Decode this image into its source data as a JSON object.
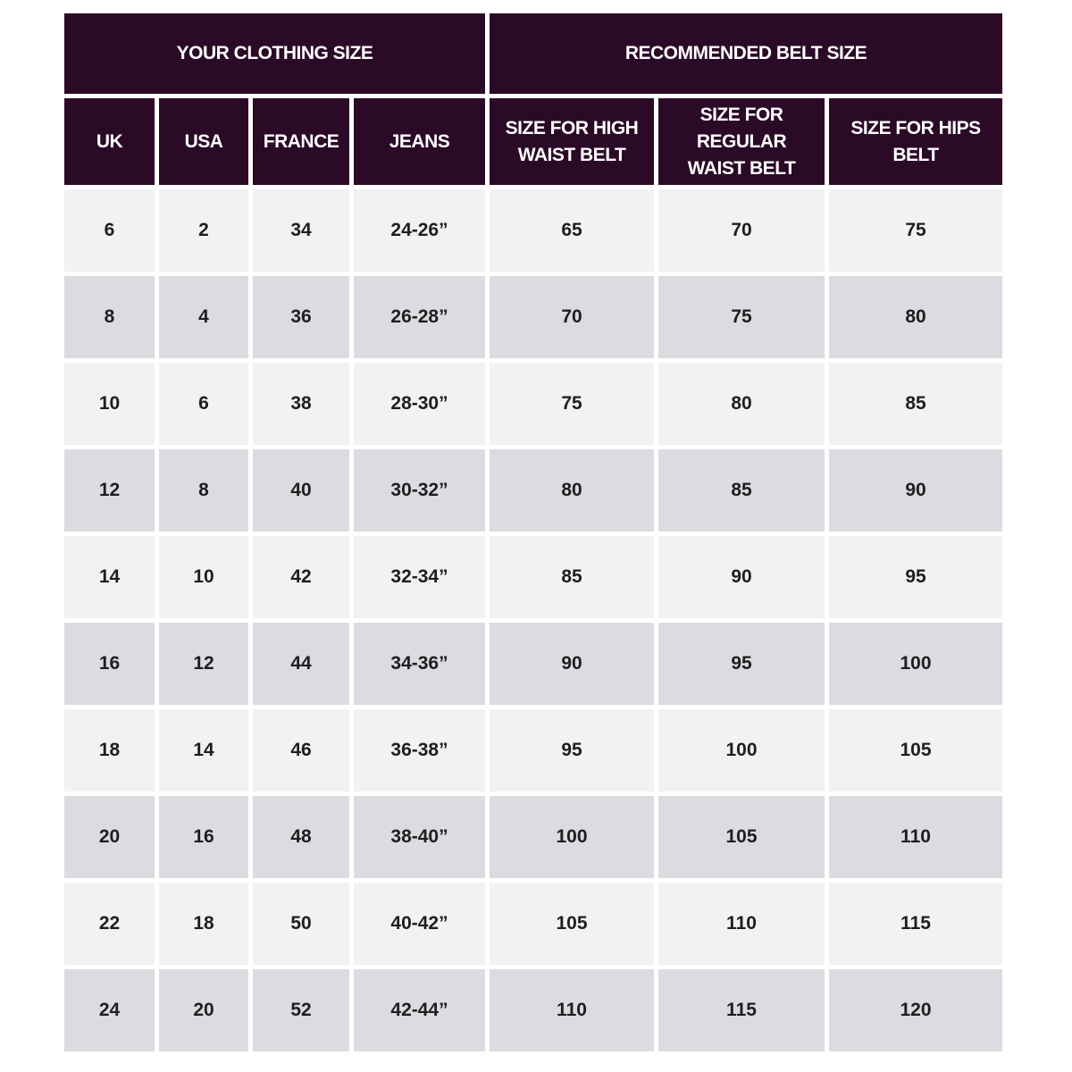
{
  "header": {
    "groups": [
      "YOUR CLOTHING SIZE",
      "RECOMMENDED BELT SIZE"
    ]
  },
  "table": {
    "columns": [
      "UK",
      "USA",
      "FRANCE",
      "JEANS",
      "SIZE FOR HIGH WAIST BELT",
      "SIZE FOR REGULAR WAIST BELT",
      "SIZE FOR HIPS BELT"
    ],
    "rows": [
      [
        6,
        2,
        34,
        "24-26”",
        65,
        70,
        75
      ],
      [
        8,
        4,
        36,
        "26-28”",
        70,
        75,
        80
      ],
      [
        10,
        6,
        38,
        "28-30”",
        75,
        80,
        85
      ],
      [
        12,
        8,
        40,
        "30-32”",
        80,
        85,
        90
      ],
      [
        14,
        10,
        42,
        "32-34”",
        85,
        90,
        95
      ],
      [
        16,
        12,
        44,
        "34-36”",
        90,
        95,
        100
      ],
      [
        18,
        14,
        46,
        "36-38”",
        95,
        100,
        105
      ],
      [
        20,
        16,
        48,
        "38-40”",
        100,
        105,
        110
      ],
      [
        22,
        18,
        50,
        "40-42”",
        105,
        110,
        115
      ],
      [
        24,
        20,
        52,
        "42-44”",
        110,
        115,
        120
      ]
    ]
  }
}
